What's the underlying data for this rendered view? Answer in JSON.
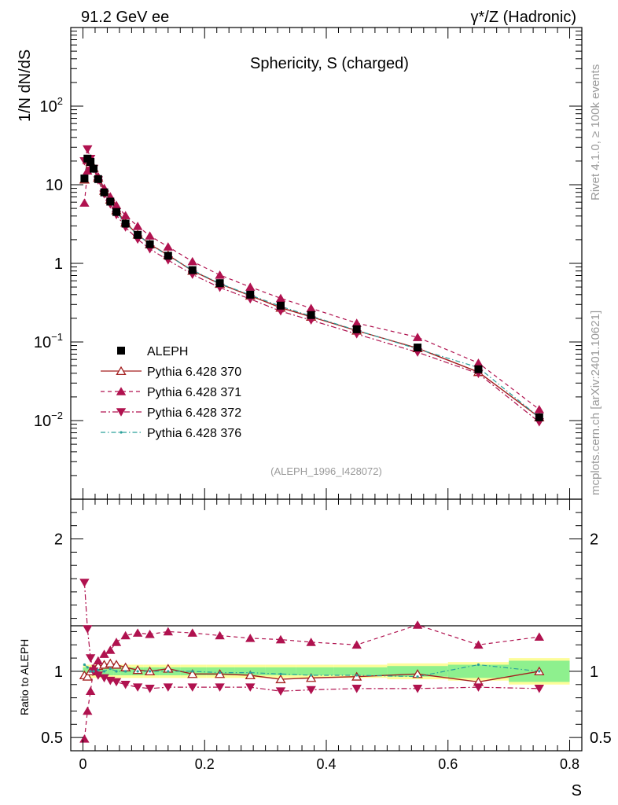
{
  "header": {
    "left": "91.2 GeV ee",
    "right": "γ*/Z (Hadronic)"
  },
  "side_labels": {
    "rivet": "Rivet 4.1.0, ≥ 100k events",
    "mcplots": "mcplots.cern.ch [arXiv:2401.10621]"
  },
  "chart_data": {
    "type": "line",
    "title": "Sphericity, S (charged)",
    "analysis_tag": "(ALEPH_1996_I428072)",
    "xlabel": "S",
    "ylabel": "1/N  dN/dS",
    "ratio_ylabel": "Ratio to ALEPH",
    "xlim": [
      -0.02,
      0.82
    ],
    "ylim": [
      0.001,
      1000
    ],
    "yscale": "log",
    "ratio_ylim": [
      0.4,
      2.3
    ],
    "x_ticks": [
      "0",
      "0.2",
      "0.4",
      "0.6",
      "0.8"
    ],
    "y_ticks": [
      "10^-2",
      "10^-1",
      "1",
      "10",
      "10^2"
    ],
    "ratio_ticks": [
      "0.5",
      "1",
      "2"
    ],
    "x": [
      0.0025,
      0.0075,
      0.0125,
      0.0175,
      0.025,
      0.035,
      0.045,
      0.055,
      0.07,
      0.09,
      0.11,
      0.14,
      0.18,
      0.225,
      0.275,
      0.325,
      0.375,
      0.45,
      0.55,
      0.65,
      0.75
    ],
    "series": [
      {
        "name": "ALEPH",
        "style": "data",
        "values": [
          12.0,
          21.5,
          19.5,
          16.0,
          11.8,
          8.0,
          6.1,
          4.5,
          3.2,
          2.3,
          1.75,
          1.25,
          0.82,
          0.56,
          0.4,
          0.29,
          0.22,
          0.145,
          0.085,
          0.045,
          0.011
        ]
      },
      {
        "name": "Pythia 6.428 370",
        "style": "solid-open-triangle",
        "color": "#a31f1f",
        "ratio": [
          0.97,
          0.96,
          1.0,
          1.02,
          1.04,
          1.05,
          1.06,
          1.05,
          1.03,
          1.01,
          1.0,
          1.02,
          0.98,
          0.98,
          0.97,
          0.94,
          0.95,
          0.96,
          0.98,
          0.92,
          1.0
        ]
      },
      {
        "name": "Pythia 6.428 371",
        "style": "dashed-filled-triangle",
        "color": "#b0124f",
        "ratio": [
          0.49,
          0.7,
          0.85,
          1.02,
          1.08,
          1.13,
          1.16,
          1.22,
          1.27,
          1.29,
          1.28,
          1.3,
          1.29,
          1.27,
          1.25,
          1.24,
          1.22,
          1.2,
          1.35,
          1.2,
          1.26
        ]
      },
      {
        "name": "Pythia 6.428 372",
        "style": "dashdot-down-triangle",
        "color": "#b0124f",
        "ratio": [
          1.67,
          1.32,
          1.1,
          1.0,
          0.97,
          0.95,
          0.93,
          0.92,
          0.9,
          0.88,
          0.87,
          0.88,
          0.88,
          0.88,
          0.88,
          0.85,
          0.86,
          0.87,
          0.87,
          0.88,
          0.87
        ]
      },
      {
        "name": "Pythia 6.428 376",
        "style": "dashdot-dot",
        "color": "#2aa09a",
        "ratio": [
          1.05,
          1.03,
          1.0,
          1.0,
          1.01,
          1.0,
          1.02,
          1.0,
          1.0,
          1.0,
          1.0,
          1.0,
          1.0,
          0.99,
          0.99,
          0.98,
          0.97,
          0.97,
          0.96,
          1.05,
          1.0
        ]
      }
    ],
    "legend_position": "lower-left",
    "uncertainty_bands": {
      "inner_fraction": [
        0.03,
        0.03,
        0.03,
        0.03,
        0.03,
        0.03,
        0.03,
        0.03,
        0.03,
        0.03,
        0.03,
        0.03,
        0.03,
        0.03,
        0.03,
        0.03,
        0.03,
        0.03,
        0.04,
        0.05,
        0.08
      ],
      "outer_fraction": [
        0.05,
        0.05,
        0.05,
        0.05,
        0.05,
        0.05,
        0.05,
        0.05,
        0.05,
        0.05,
        0.05,
        0.05,
        0.05,
        0.05,
        0.05,
        0.05,
        0.05,
        0.05,
        0.06,
        0.07,
        0.1
      ]
    }
  }
}
